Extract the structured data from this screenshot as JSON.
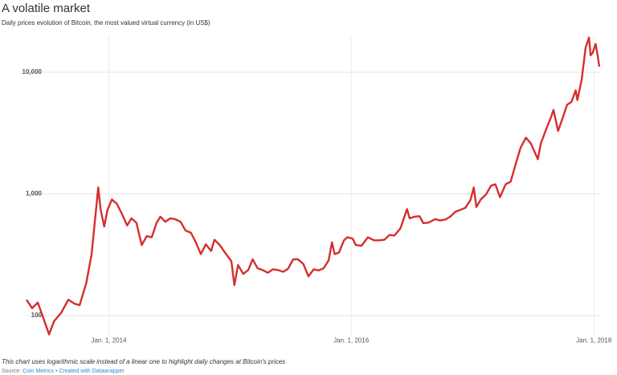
{
  "chart_data": {
    "type": "line",
    "title": "A volatile market",
    "subtitle": "Daily prices evolution of Bitcoin, the most valued virtual currency (in US$)",
    "note": "This chart uses logarithmic scale instead of a linear one to highlight daily changes at Bitcoin's prices",
    "source_label": "Source:",
    "source": "Coin Metrics",
    "credit": "• Created with Datawrapper",
    "color": "#d62e2e",
    "log_scale": true,
    "grid": true,
    "ylim": [
      60,
      20000
    ],
    "yticks": [
      100,
      {
        "value": 1000,
        "label": "1,000"
      },
      {
        "value": 10000,
        "label": "10,000"
      }
    ],
    "xlim": [
      "2013-04-28",
      "2018-01-22"
    ],
    "xticks": [
      {
        "value": "2014-01-01",
        "label": "Jan. 1, 2014"
      },
      {
        "value": "2016-01-01",
        "label": "Jan. 1, 2016"
      },
      {
        "value": "2018-01-01",
        "label": "Jan. 1, 2018"
      }
    ],
    "x": [
      "2013-04-28",
      "2013-05-15",
      "2013-06-01",
      "2013-06-15",
      "2013-07-05",
      "2013-07-20",
      "2013-08-10",
      "2013-09-01",
      "2013-09-20",
      "2013-10-05",
      "2013-10-25",
      "2013-11-10",
      "2013-11-20",
      "2013-11-30",
      "2013-12-07",
      "2013-12-18",
      "2013-12-28",
      "2014-01-10",
      "2014-01-25",
      "2014-02-10",
      "2014-02-25",
      "2014-03-10",
      "2014-03-25",
      "2014-04-10",
      "2014-04-25",
      "2014-05-10",
      "2014-05-25",
      "2014-06-05",
      "2014-06-20",
      "2014-07-05",
      "2014-07-20",
      "2014-08-05",
      "2014-08-20",
      "2014-09-05",
      "2014-09-20",
      "2014-10-05",
      "2014-10-20",
      "2014-11-05",
      "2014-11-15",
      "2014-12-01",
      "2014-12-20",
      "2015-01-05",
      "2015-01-14",
      "2015-01-25",
      "2015-02-10",
      "2015-02-25",
      "2015-03-10",
      "2015-03-25",
      "2015-04-10",
      "2015-04-25",
      "2015-05-10",
      "2015-05-25",
      "2015-06-10",
      "2015-06-25",
      "2015-07-10",
      "2015-07-25",
      "2015-08-10",
      "2015-08-25",
      "2015-09-10",
      "2015-09-25",
      "2015-10-10",
      "2015-10-25",
      "2015-11-04",
      "2015-11-12",
      "2015-11-25",
      "2015-12-10",
      "2015-12-20",
      "2016-01-05",
      "2016-01-15",
      "2016-02-01",
      "2016-02-20",
      "2016-03-10",
      "2016-03-25",
      "2016-04-10",
      "2016-04-25",
      "2016-05-10",
      "2016-05-28",
      "2016-06-17",
      "2016-06-25",
      "2016-07-10",
      "2016-07-25",
      "2016-08-05",
      "2016-08-20",
      "2016-09-10",
      "2016-09-25",
      "2016-10-10",
      "2016-10-25",
      "2016-11-10",
      "2016-11-25",
      "2016-12-10",
      "2016-12-25",
      "2017-01-04",
      "2017-01-12",
      "2017-01-25",
      "2017-02-10",
      "2017-02-25",
      "2017-03-10",
      "2017-03-24",
      "2017-04-10",
      "2017-04-25",
      "2017-05-10",
      "2017-05-25",
      "2017-06-10",
      "2017-06-25",
      "2017-07-16",
      "2017-07-25",
      "2017-08-10",
      "2017-08-25",
      "2017-09-01",
      "2017-09-15",
      "2017-09-30",
      "2017-10-12",
      "2017-10-25",
      "2017-11-07",
      "2017-11-12",
      "2017-11-25",
      "2017-12-07",
      "2017-12-17",
      "2017-12-22",
      "2017-12-28",
      "2018-01-06",
      "2018-01-12",
      "2018-01-17"
    ],
    "values": [
      135,
      115,
      128,
      100,
      70,
      90,
      105,
      135,
      125,
      122,
      185,
      320,
      600,
      1130,
      750,
      540,
      740,
      900,
      830,
      680,
      550,
      630,
      580,
      380,
      450,
      440,
      580,
      650,
      590,
      630,
      620,
      590,
      500,
      480,
      400,
      320,
      385,
      340,
      420,
      380,
      320,
      280,
      178,
      260,
      220,
      237,
      290,
      245,
      236,
      225,
      240,
      237,
      229,
      243,
      290,
      290,
      265,
      210,
      240,
      235,
      245,
      285,
      400,
      320,
      330,
      415,
      440,
      430,
      380,
      375,
      440,
      415,
      415,
      420,
      460,
      455,
      520,
      750,
      630,
      650,
      655,
      575,
      580,
      620,
      605,
      615,
      650,
      715,
      740,
      770,
      890,
      1130,
      780,
      900,
      990,
      1170,
      1200,
      940,
      1200,
      1260,
      1750,
      2400,
      2900,
      2600,
      1930,
      2600,
      3400,
      4300,
      4900,
      3300,
      4300,
      5400,
      5700,
      7100,
      5900,
      8700,
      16000,
      19300,
      13800,
      14400,
      17100,
      13800,
      11100
    ]
  }
}
